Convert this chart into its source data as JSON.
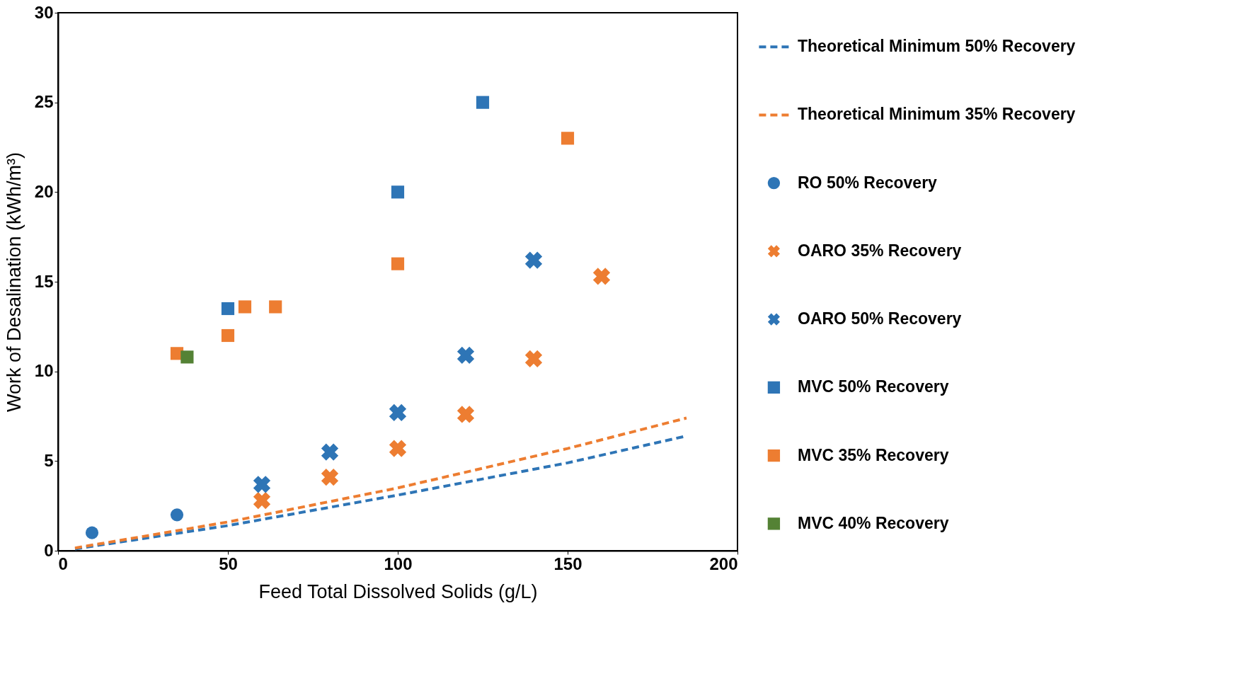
{
  "chart_data": {
    "type": "scatter",
    "xlabel": "Feed Total Dissolved Solids (g/L)",
    "ylabel": "Work of Desalination (kWh/m³)",
    "xlim": [
      0,
      200
    ],
    "xticks": [
      0,
      50,
      100,
      150,
      200
    ],
    "ylim": [
      0,
      30
    ],
    "yticks": [
      0,
      5,
      10,
      15,
      20,
      25,
      30
    ],
    "grid": false,
    "legend": "right",
    "series": [
      {
        "name": "Theoretical Minimum 50% Recovery",
        "type": "line",
        "line_style": "dashed",
        "marker": "none",
        "color": "#2e75b6",
        "x": [
          5,
          50,
          100,
          150,
          185
        ],
        "values": [
          0.1,
          1.4,
          3.1,
          4.9,
          6.4
        ]
      },
      {
        "name": "Theoretical Minimum 35% Recovery",
        "type": "line",
        "line_style": "dashed",
        "marker": "none",
        "color": "#ed7d31",
        "x": [
          5,
          50,
          100,
          150,
          185
        ],
        "values": [
          0.15,
          1.6,
          3.5,
          5.7,
          7.4
        ]
      },
      {
        "name": "RO 50% Recovery",
        "marker": "circle",
        "color": "#2e75b6",
        "x": [
          10,
          35
        ],
        "values": [
          1,
          2
        ]
      },
      {
        "name": "OARO 35% Recovery",
        "marker": "cross",
        "color": "#ed7d31",
        "x": [
          60,
          80,
          100,
          120,
          140,
          160
        ],
        "values": [
          2.8,
          4.1,
          5.7,
          7.6,
          10.7,
          15.3
        ]
      },
      {
        "name": "OARO 50% Recovery",
        "marker": "cross",
        "color": "#2e75b6",
        "x": [
          60,
          80,
          100,
          120,
          140
        ],
        "values": [
          3.7,
          5.5,
          7.7,
          10.9,
          16.2
        ]
      },
      {
        "name": "MVC 50% Recovery",
        "marker": "square",
        "color": "#2e75b6",
        "x": [
          50,
          100,
          125
        ],
        "values": [
          13.5,
          20,
          25
        ]
      },
      {
        "name": "MVC 35% Recovery",
        "marker": "square",
        "color": "#ed7d31",
        "x": [
          35,
          50,
          55,
          64,
          100,
          150
        ],
        "values": [
          11,
          12,
          13.6,
          13.6,
          16,
          23
        ]
      },
      {
        "name": "MVC 40% Recovery",
        "marker": "square",
        "color": "#548235",
        "x": [
          38
        ],
        "values": [
          10.8
        ]
      }
    ]
  }
}
